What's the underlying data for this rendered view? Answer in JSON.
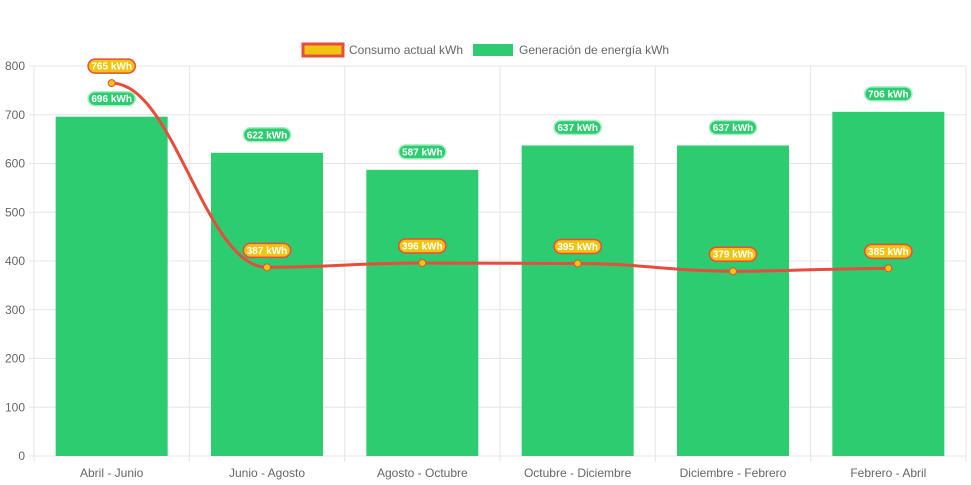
{
  "chart_data": {
    "type": "bar",
    "categories": [
      "Abril - Junio",
      "Junio - Agosto",
      "Agosto - Octubre",
      "Octubre - Diciembre",
      "Diciembre - Febrero",
      "Febrero - Abril"
    ],
    "series": [
      {
        "name": "Consumo actual kWh",
        "type": "line",
        "values": [
          765,
          387,
          396,
          395,
          379,
          385
        ],
        "color": "#e74c3c",
        "fill": "#f1c40f"
      },
      {
        "name": "Generación de energía kWh",
        "type": "bar",
        "values": [
          696,
          622,
          587,
          637,
          637,
          706
        ],
        "color": "#2ecc71"
      }
    ],
    "label_suffix": " kWh",
    "ylim": [
      0,
      800
    ],
    "yticks": [
      0,
      100,
      200,
      300,
      400,
      500,
      600,
      700,
      800
    ],
    "grid": true,
    "legend": "top"
  }
}
